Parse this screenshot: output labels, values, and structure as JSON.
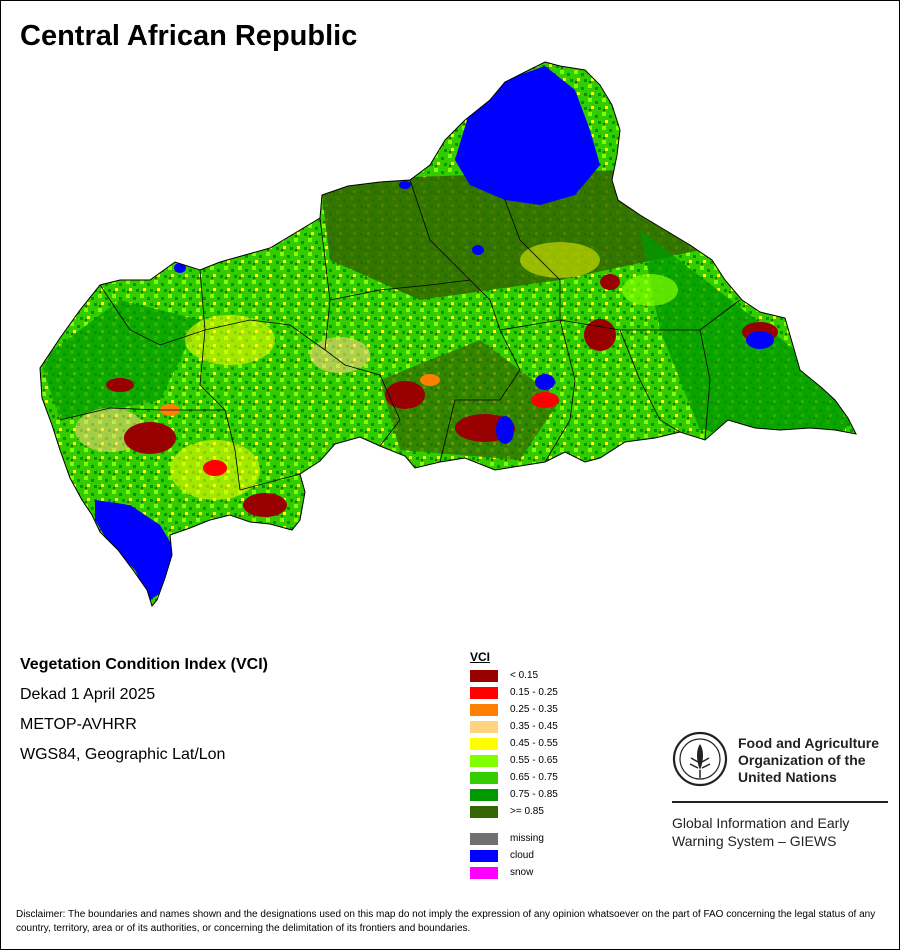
{
  "title": "Central African Republic",
  "info": {
    "index_name": "Vegetation Condition Index (VCI)",
    "period": "Dekad 1 April 2025",
    "sensor": "METOP-AVHRR",
    "projection": "WGS84, Geographic Lat/Lon"
  },
  "legend": {
    "title": "VCI",
    "classes": [
      {
        "label": "< 0.15",
        "color": "#990000"
      },
      {
        "label": "0.15 - 0.25",
        "color": "#ff0000"
      },
      {
        "label": "0.25 - 0.35",
        "color": "#ff8000"
      },
      {
        "label": "0.35 - 0.45",
        "color": "#ffd27f"
      },
      {
        "label": "0.45 - 0.55",
        "color": "#ffff00"
      },
      {
        "label": "0.55 - 0.65",
        "color": "#80ff00"
      },
      {
        "label": "0.65 - 0.75",
        "color": "#33cc00"
      },
      {
        "label": "0.75 - 0.85",
        "color": "#009900"
      },
      {
        "label": ">= 0.85",
        "color": "#336600"
      }
    ],
    "other": [
      {
        "label": "missing",
        "color": "#707070"
      },
      {
        "label": "cloud",
        "color": "#0000ff"
      },
      {
        "label": "snow",
        "color": "#ff00ff"
      }
    ]
  },
  "org": {
    "logo_text": "FAO",
    "logo_motto": "FIAT PANIS",
    "name_line1": "Food and Agriculture",
    "name_line2": "Organization of the",
    "name_line3": "United Nations",
    "giews_line1": "Global Information and Early",
    "giews_line2": "Warning System – GIEWS"
  },
  "disclaimer": "Disclaimer: The boundaries and names shown and the designations used on this map do not imply the expression of any opinion whatsoever on the part of FAO concerning the legal status of any country, territory, area or of its authorities, or concerning the delimitation of its frontiers and boundaries."
}
